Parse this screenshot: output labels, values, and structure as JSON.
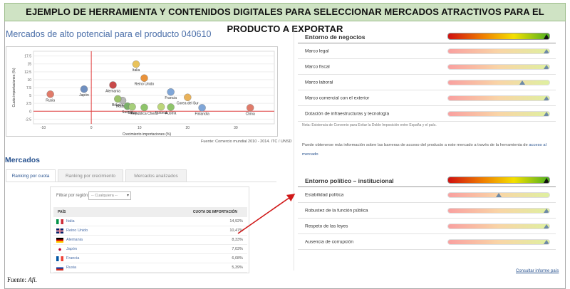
{
  "banner": {
    "text": "EJEMPLO DE HERRAMIENTA Y CONTENIDOS DIGITALES PARA SELECCIONAR MERCADOS ATRACTIVOS PARA EL PRODUCTO A EXPORTAR"
  },
  "left": {
    "title": "Mercados de alto potencial para el producto 040610",
    "source": "Fuente: Comercio mundial 2010 - 2014. ITC / UNSD",
    "mercados_title": "Mercados",
    "tabs": [
      {
        "label": "Ranking por cuota",
        "active": true
      },
      {
        "label": "Ranking por crecimiento",
        "active": false
      },
      {
        "label": "Mercados analizados",
        "active": false
      }
    ],
    "filter": {
      "label": "Filtrar por región:",
      "value": "-- Cualquiera --"
    },
    "table": {
      "headers": [
        "PAÍS",
        "CUOTA DE IMPORTACIÓN"
      ],
      "rows": [
        {
          "country": "Italia",
          "share": "14,92%",
          "flag": "italy"
        },
        {
          "country": "Reino Unido",
          "share": "10,47%",
          "flag": "uk"
        },
        {
          "country": "Alemania",
          "share": "8,33%",
          "flag": "germany"
        },
        {
          "country": "Japón",
          "share": "7,03%",
          "flag": "japan"
        },
        {
          "country": "Francia",
          "share": "6,08%",
          "flag": "france"
        },
        {
          "country": "Rusia",
          "share": "5,39%",
          "flag": "russia"
        }
      ]
    }
  },
  "chart_data": {
    "type": "scatter",
    "xlabel": "Crecimiento importaciones (%)",
    "ylabel": "Cuota importaciones (%)",
    "xlim": [
      -12,
      38
    ],
    "ylim": [
      -4,
      19
    ],
    "xticks": [
      -10,
      0,
      10,
      20,
      30
    ],
    "yticks": [
      -2.5,
      0,
      2.5,
      5,
      7.5,
      10,
      12.5,
      15,
      17.5
    ],
    "points": [
      {
        "name": "Rusia",
        "x": -8.5,
        "y": 5.4,
        "color": "#e07b6a"
      },
      {
        "name": "Japón",
        "x": -1.5,
        "y": 7.0,
        "color": "#6f8fc0"
      },
      {
        "name": "Alemania",
        "x": 4.5,
        "y": 8.3,
        "color": "#c94a4a"
      },
      {
        "name": "Italia",
        "x": 9.3,
        "y": 14.9,
        "color": "#e9c25a"
      },
      {
        "name": "Reino Unido",
        "x": 11.0,
        "y": 10.5,
        "color": "#e9923a"
      },
      {
        "name": "Holanda",
        "x": 6.5,
        "y": 3.4,
        "color": "#b8b8b8"
      },
      {
        "name": "Bélgica",
        "x": 5.5,
        "y": 3.9,
        "color": "#9bc26a"
      },
      {
        "name": "Suecia",
        "x": 7.5,
        "y": 1.6,
        "color": "#7bb06a"
      },
      {
        "name": "Suiza",
        "x": 8.5,
        "y": 1.4,
        "color": "#a6cf7a"
      },
      {
        "name": "República Checa",
        "x": 11.0,
        "y": 1.2,
        "color": "#8ec46a"
      },
      {
        "name": "Polonia",
        "x": 14.5,
        "y": 1.4,
        "color": "#bcd67a"
      },
      {
        "name": "Austria",
        "x": 16.5,
        "y": 1.3,
        "color": "#8ec46a"
      },
      {
        "name": "Francia",
        "x": 16.5,
        "y": 6.1,
        "color": "#7fa6d8"
      },
      {
        "name": "Corea del Sur",
        "x": 20.0,
        "y": 4.4,
        "color": "#e9b25a"
      },
      {
        "name": "Finlandia",
        "x": 23.0,
        "y": 1.1,
        "color": "#7fa6d8"
      },
      {
        "name": "China",
        "x": 33.0,
        "y": 1.1,
        "color": "#e07b6a"
      }
    ]
  },
  "right": {
    "negocios": {
      "title": "Entorno de negocios",
      "overall": 0.97,
      "items": [
        {
          "label": "Marco legal",
          "level": 0.97
        },
        {
          "label": "Marco fiscal",
          "level": 0.97
        },
        {
          "label": "Marco laboral",
          "level": 0.73
        },
        {
          "label": "Marco comercial con el exterior",
          "level": 0.97
        },
        {
          "label": "Dotación de infraestructuras y tecnología",
          "level": 0.97
        }
      ]
    },
    "note": "Nota: Existencia de Convenio para Evitar la Doble Imposición entre España y el país.",
    "more_text": "Puede obtenerse más información sobre las barreras de acceso del producto a este mercado a través de la herramienta de",
    "more_link": "acceso al mercado",
    "politico": {
      "title": "Entorno político – institucional",
      "overall": 0.97,
      "items": [
        {
          "label": "Estabilidad política",
          "level": 0.5
        },
        {
          "label": "Robustez de la función pública",
          "level": 0.97
        },
        {
          "label": "Respeto de las leyes",
          "level": 0.97
        },
        {
          "label": "Ausencia de corrupción",
          "level": 0.97
        }
      ]
    },
    "informe": "Consultar informe país"
  },
  "footer": {
    "label": "Fuente:",
    "source": "Afi."
  },
  "colors": {
    "banner_bg": "#cfe3c4",
    "link": "#4a6ea8",
    "axis_red": "#e04040",
    "arrow": "#d01818"
  }
}
